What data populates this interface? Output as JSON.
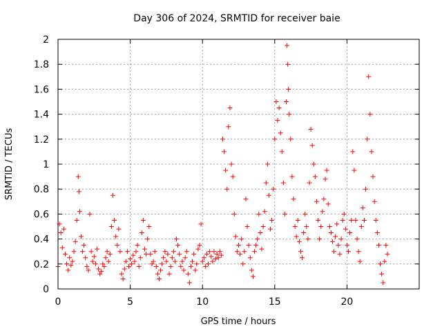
{
  "chart_data": {
    "type": "scatter",
    "title": "Day 306 of 2024, SRMTID for receiver baie",
    "xlabel": "GPS time / hours",
    "ylabel": "SRMTID / TECUs",
    "xlim": [
      0,
      25
    ],
    "ylim": [
      0,
      2
    ],
    "xticks": [
      0,
      5,
      10,
      15,
      20
    ],
    "xtick_labels": [
      "0",
      "5",
      "10",
      "15",
      "20"
    ],
    "yticks": [
      0,
      0.2,
      0.4,
      0.6,
      0.8,
      1,
      1.2,
      1.4,
      1.6,
      1.8,
      2
    ],
    "ytick_labels": [
      "0",
      "0.2",
      "0.4",
      "0.6",
      "0.8",
      "1",
      "1.2",
      "1.4",
      "1.6",
      "1.8",
      "2"
    ],
    "grid": true,
    "marker": "+",
    "color": "#ff0000",
    "series": [
      {
        "name": "SRMTID",
        "points": [
          [
            0.0,
            0.18
          ],
          [
            0.1,
            0.52
          ],
          [
            0.2,
            0.45
          ],
          [
            0.3,
            0.33
          ],
          [
            0.4,
            0.48
          ],
          [
            0.5,
            0.28
          ],
          [
            0.6,
            0.2
          ],
          [
            0.7,
            0.15
          ],
          [
            0.8,
            0.25
          ],
          [
            0.9,
            0.19
          ],
          [
            1.0,
            0.22
          ],
          [
            1.1,
            0.3
          ],
          [
            1.2,
            0.38
          ],
          [
            1.3,
            0.55
          ],
          [
            1.4,
            0.9
          ],
          [
            1.45,
            0.78
          ],
          [
            1.5,
            0.62
          ],
          [
            1.6,
            0.42
          ],
          [
            1.7,
            0.3
          ],
          [
            1.8,
            0.35
          ],
          [
            1.9,
            0.25
          ],
          [
            2.0,
            0.18
          ],
          [
            2.1,
            0.15
          ],
          [
            2.2,
            0.6
          ],
          [
            2.3,
            0.3
          ],
          [
            2.4,
            0.22
          ],
          [
            2.5,
            0.26
          ],
          [
            2.6,
            0.2
          ],
          [
            2.7,
            0.32
          ],
          [
            2.8,
            0.16
          ],
          [
            2.9,
            0.12
          ],
          [
            3.0,
            0.14
          ],
          [
            3.1,
            0.2
          ],
          [
            3.2,
            0.18
          ],
          [
            3.3,
            0.25
          ],
          [
            3.4,
            0.3
          ],
          [
            3.5,
            0.22
          ],
          [
            3.6,
            0.28
          ],
          [
            3.7,
            0.5
          ],
          [
            3.8,
            0.75
          ],
          [
            3.9,
            0.55
          ],
          [
            4.0,
            0.42
          ],
          [
            4.1,
            0.35
          ],
          [
            4.2,
            0.48
          ],
          [
            4.3,
            0.3
          ],
          [
            4.4,
            0.12
          ],
          [
            4.5,
            0.08
          ],
          [
            4.6,
            0.16
          ],
          [
            4.7,
            0.22
          ],
          [
            4.8,
            0.3
          ],
          [
            4.9,
            0.18
          ],
          [
            5.0,
            0.24
          ],
          [
            5.1,
            0.2
          ],
          [
            5.2,
            0.27
          ],
          [
            5.3,
            0.22
          ],
          [
            5.4,
            0.3
          ],
          [
            5.5,
            0.35
          ],
          [
            5.6,
            0.18
          ],
          [
            5.7,
            0.25
          ],
          [
            5.8,
            0.45
          ],
          [
            5.9,
            0.55
          ],
          [
            6.0,
            0.32
          ],
          [
            6.1,
            0.28
          ],
          [
            6.2,
            0.4
          ],
          [
            6.3,
            0.5
          ],
          [
            6.4,
            0.28
          ],
          [
            6.5,
            0.2
          ],
          [
            6.6,
            0.22
          ],
          [
            6.7,
            0.3
          ],
          [
            6.8,
            0.18
          ],
          [
            6.9,
            0.12
          ],
          [
            7.0,
            0.08
          ],
          [
            7.1,
            0.15
          ],
          [
            7.2,
            0.2
          ],
          [
            7.3,
            0.25
          ],
          [
            7.4,
            0.3
          ],
          [
            7.5,
            0.22
          ],
          [
            7.6,
            0.28
          ],
          [
            7.7,
            0.12
          ],
          [
            7.8,
            0.18
          ],
          [
            7.9,
            0.25
          ],
          [
            8.0,
            0.3
          ],
          [
            8.1,
            0.22
          ],
          [
            8.2,
            0.4
          ],
          [
            8.3,
            0.35
          ],
          [
            8.4,
            0.28
          ],
          [
            8.5,
            0.18
          ],
          [
            8.6,
            0.22
          ],
          [
            8.7,
            0.15
          ],
          [
            8.8,
            0.25
          ],
          [
            8.9,
            0.3
          ],
          [
            9.0,
            0.12
          ],
          [
            9.1,
            0.05
          ],
          [
            9.2,
            0.18
          ],
          [
            9.3,
            0.22
          ],
          [
            9.4,
            0.28
          ],
          [
            9.5,
            0.15
          ],
          [
            9.6,
            0.2
          ],
          [
            9.7,
            0.32
          ],
          [
            9.8,
            0.35
          ],
          [
            9.9,
            0.52
          ],
          [
            10.0,
            0.22
          ],
          [
            10.1,
            0.25
          ],
          [
            10.2,
            0.18
          ],
          [
            10.3,
            0.28
          ],
          [
            10.4,
            0.2
          ],
          [
            10.5,
            0.3
          ],
          [
            10.6,
            0.26
          ],
          [
            10.7,
            0.22
          ],
          [
            10.8,
            0.3
          ],
          [
            10.9,
            0.24
          ],
          [
            11.0,
            0.28
          ],
          [
            11.1,
            0.25
          ],
          [
            11.2,
            0.3
          ],
          [
            11.3,
            0.27
          ],
          [
            11.4,
            1.2
          ],
          [
            11.5,
            1.1
          ],
          [
            11.6,
            0.95
          ],
          [
            11.7,
            0.8
          ],
          [
            11.8,
            1.3
          ],
          [
            11.9,
            1.45
          ],
          [
            12.0,
            1.0
          ],
          [
            12.1,
            0.9
          ],
          [
            12.2,
            0.6
          ],
          [
            12.3,
            0.42
          ],
          [
            12.4,
            0.3
          ],
          [
            12.5,
            0.35
          ],
          [
            12.6,
            0.28
          ],
          [
            12.7,
            0.4
          ],
          [
            12.8,
            0.2
          ],
          [
            12.9,
            0.3
          ],
          [
            13.0,
            0.72
          ],
          [
            13.1,
            0.5
          ],
          [
            13.2,
            0.35
          ],
          [
            13.3,
            0.25
          ],
          [
            13.4,
            0.15
          ],
          [
            13.5,
            0.1
          ],
          [
            13.6,
            0.3
          ],
          [
            13.7,
            0.35
          ],
          [
            13.8,
            0.4
          ],
          [
            13.9,
            0.6
          ],
          [
            14.0,
            0.45
          ],
          [
            14.1,
            0.32
          ],
          [
            14.2,
            0.5
          ],
          [
            14.3,
            0.62
          ],
          [
            14.4,
            0.85
          ],
          [
            14.5,
            1.0
          ],
          [
            14.6,
            0.75
          ],
          [
            14.7,
            0.48
          ],
          [
            14.8,
            0.55
          ],
          [
            14.9,
            0.8
          ],
          [
            15.0,
            1.2
          ],
          [
            15.1,
            1.5
          ],
          [
            15.2,
            1.35
          ],
          [
            15.3,
            1.45
          ],
          [
            15.4,
            1.25
          ],
          [
            15.5,
            1.1
          ],
          [
            15.6,
            0.85
          ],
          [
            15.7,
            0.6
          ],
          [
            15.8,
            1.5
          ],
          [
            15.85,
            1.95
          ],
          [
            15.9,
            1.8
          ],
          [
            15.95,
            1.6
          ],
          [
            16.0,
            1.4
          ],
          [
            16.1,
            1.2
          ],
          [
            16.2,
            0.9
          ],
          [
            16.3,
            0.72
          ],
          [
            16.4,
            0.5
          ],
          [
            16.5,
            0.42
          ],
          [
            16.6,
            0.55
          ],
          [
            16.7,
            0.38
          ],
          [
            16.8,
            0.3
          ],
          [
            16.9,
            0.25
          ],
          [
            17.0,
            0.45
          ],
          [
            17.1,
            0.6
          ],
          [
            17.2,
            0.5
          ],
          [
            17.3,
            0.4
          ],
          [
            17.4,
            0.85
          ],
          [
            17.5,
            1.28
          ],
          [
            17.6,
            1.15
          ],
          [
            17.7,
            1.0
          ],
          [
            17.8,
            0.9
          ],
          [
            17.9,
            0.7
          ],
          [
            18.0,
            0.55
          ],
          [
            18.1,
            0.4
          ],
          [
            18.2,
            0.5
          ],
          [
            18.3,
            0.62
          ],
          [
            18.4,
            0.72
          ],
          [
            18.5,
            0.88
          ],
          [
            18.6,
            0.95
          ],
          [
            18.7,
            0.68
          ],
          [
            18.8,
            0.5
          ],
          [
            18.9,
            0.45
          ],
          [
            19.0,
            0.38
          ],
          [
            19.1,
            0.3
          ],
          [
            19.2,
            0.42
          ],
          [
            19.3,
            0.52
          ],
          [
            19.4,
            0.35
          ],
          [
            19.5,
            0.28
          ],
          [
            19.6,
            0.4
          ],
          [
            19.7,
            0.55
          ],
          [
            19.8,
            0.6
          ],
          [
            19.9,
            0.48
          ],
          [
            20.0,
            0.35
          ],
          [
            20.1,
            0.3
          ],
          [
            20.2,
            0.45
          ],
          [
            20.3,
            0.55
          ],
          [
            20.4,
            1.1
          ],
          [
            20.5,
            0.95
          ],
          [
            20.6,
            0.55
          ],
          [
            20.7,
            0.4
          ],
          [
            20.8,
            0.3
          ],
          [
            20.9,
            0.22
          ],
          [
            21.0,
            0.5
          ],
          [
            21.1,
            0.65
          ],
          [
            21.2,
            0.55
          ],
          [
            21.3,
            0.8
          ],
          [
            21.4,
            1.2
          ],
          [
            21.5,
            1.7
          ],
          [
            21.6,
            1.4
          ],
          [
            21.7,
            1.1
          ],
          [
            21.8,
            0.9
          ],
          [
            21.9,
            0.7
          ],
          [
            22.0,
            0.55
          ],
          [
            22.1,
            0.45
          ],
          [
            22.2,
            0.35
          ],
          [
            22.3,
            0.2
          ],
          [
            22.4,
            0.12
          ],
          [
            22.5,
            0.05
          ],
          [
            22.6,
            0.22
          ],
          [
            22.7,
            0.35
          ],
          [
            22.8,
            0.28
          ]
        ]
      }
    ]
  }
}
